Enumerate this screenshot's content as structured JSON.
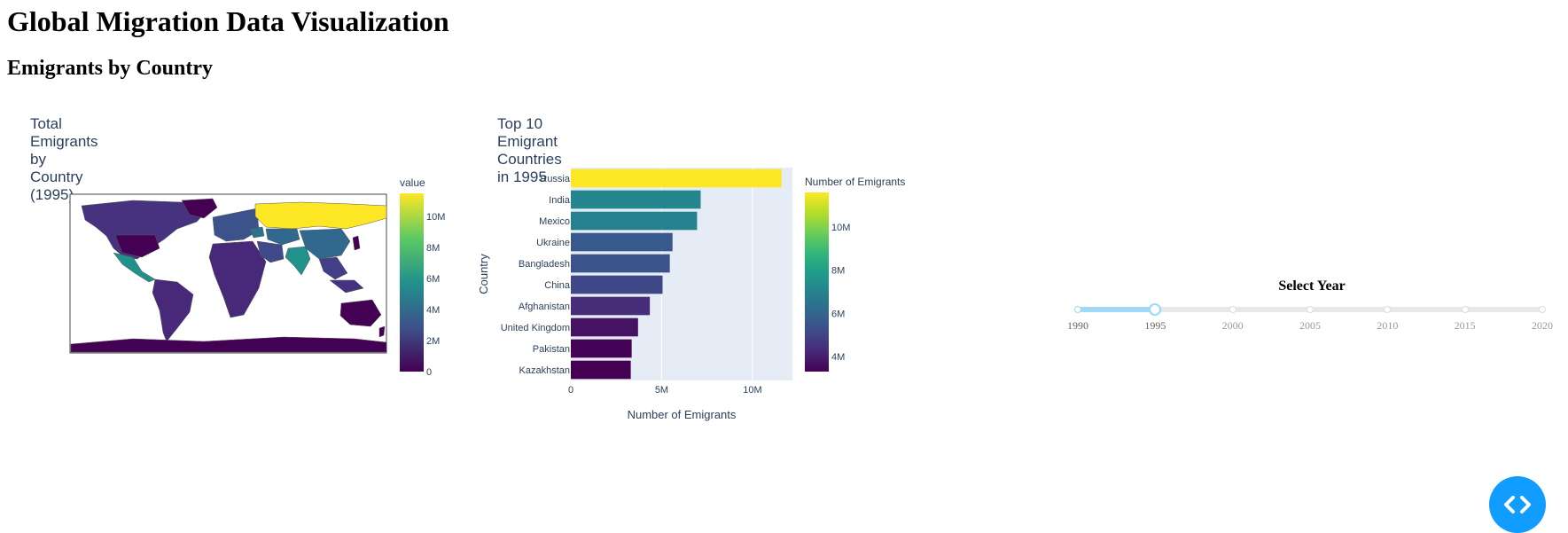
{
  "page": {
    "title": "Global Migration Data Visualization",
    "subtitle": "Emigrants by Country"
  },
  "map": {
    "title": "Total Emigrants by Country (1995)",
    "colorbar_title": "value",
    "colorbar_ticks": [
      "10M",
      "8M",
      "6M",
      "4M",
      "2M",
      "0"
    ],
    "colorscale": "viridis"
  },
  "chart_data": [
    {
      "type": "bar",
      "orientation": "horizontal",
      "title": "Top 10 Emigrant Countries in 1995",
      "xlabel": "Number of Emigrants",
      "ylabel": "Country",
      "categories": [
        "Russia",
        "India",
        "Mexico",
        "Ukraine",
        "Bangladesh",
        "China",
        "Afghanistan",
        "United Kingdom",
        "Pakistan",
        "Kazakhstan"
      ],
      "values": [
        11600000,
        7150000,
        6950000,
        5600000,
        5450000,
        5050000,
        4350000,
        3700000,
        3350000,
        3300000
      ],
      "xlim": [
        0,
        12200000
      ],
      "xticks": [
        {
          "value": 0,
          "label": "0"
        },
        {
          "value": 5000000,
          "label": "5M"
        },
        {
          "value": 10000000,
          "label": "10M"
        }
      ],
      "colorbar_title": "Number of Emigrants",
      "colorbar_range": [
        3300000,
        11600000
      ],
      "colorbar_ticks": [
        {
          "value": 10000000,
          "label": "10M"
        },
        {
          "value": 8000000,
          "label": "8M"
        },
        {
          "value": 6000000,
          "label": "6M"
        },
        {
          "value": 4000000,
          "label": "4M"
        }
      ],
      "grid": true,
      "plot_bgcolor": "#e5ecf6"
    }
  ],
  "slider": {
    "title": "Select Year",
    "marks": [
      "1990",
      "1995",
      "2000",
      "2005",
      "2010",
      "2015",
      "2020"
    ],
    "value": "1995",
    "accent": "#96dbfa"
  },
  "colors": {
    "text": "#2a3f5f",
    "plot_bg": "#e5ecf6",
    "devtools": "#119dff"
  }
}
